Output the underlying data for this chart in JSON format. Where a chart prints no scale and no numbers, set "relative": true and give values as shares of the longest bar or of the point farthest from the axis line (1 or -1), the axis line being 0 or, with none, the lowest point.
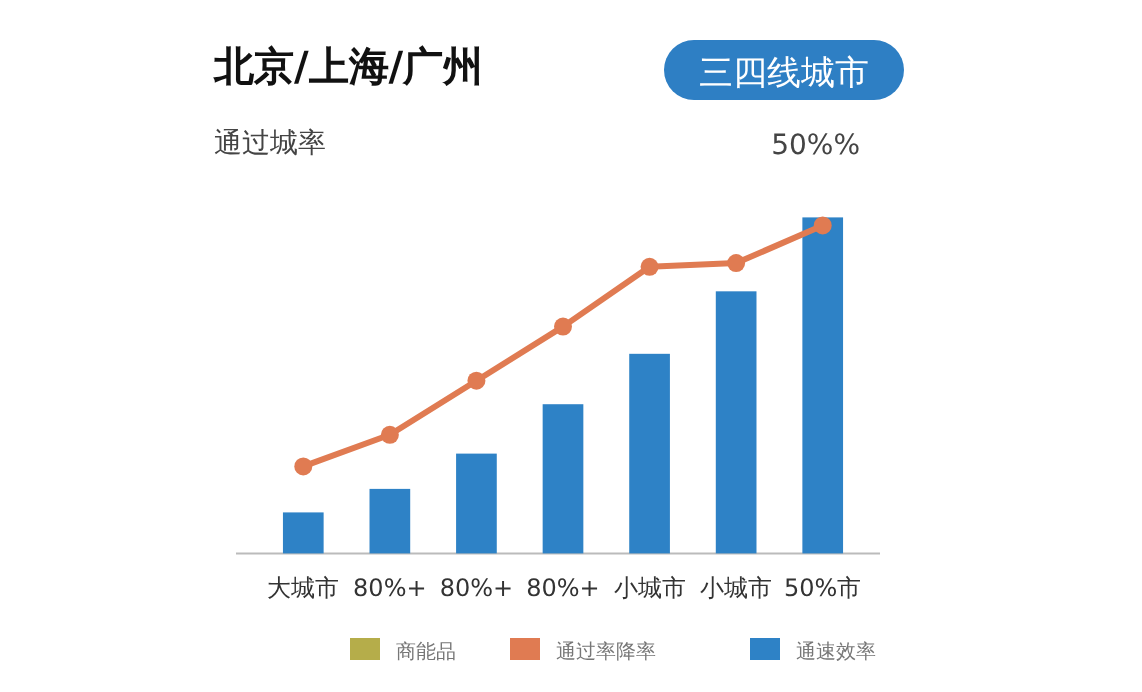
{
  "chart_data": {
    "type": "bar",
    "title": "北京/上海/广州",
    "ylabel": "通过城率",
    "annotations": [
      "三四线城市",
      "50%%"
    ],
    "categories": [
      "大城市",
      "80%+",
      "80%+",
      "80%+",
      "小城市",
      "小城市",
      "50%市"
    ],
    "series": [
      {
        "name": "商能品",
        "color": "#b5ad4a",
        "values": [
          null,
          null,
          null,
          null,
          null,
          null,
          null
        ]
      },
      {
        "name": "通过率降率",
        "type": "line",
        "color": "#e07b52",
        "values": [
          0.259,
          0.353,
          0.514,
          0.675,
          0.853,
          0.864,
          0.976
        ]
      },
      {
        "name": "通速效率",
        "color": "#2e82c6",
        "values": [
          0.122,
          0.192,
          0.297,
          0.444,
          0.594,
          0.78,
          1
        ]
      }
    ],
    "relative": true,
    "legend": "bottom",
    "marker": "circle",
    "line_style": "solid"
  }
}
